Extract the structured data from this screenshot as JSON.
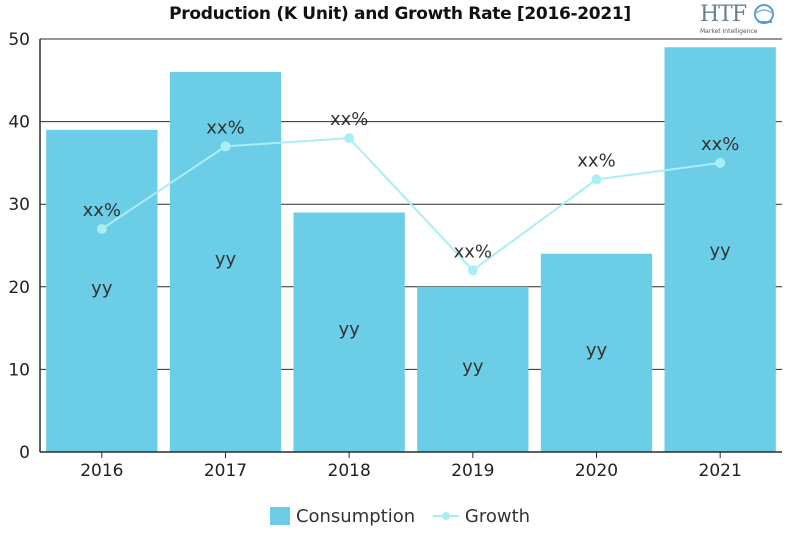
{
  "chart_data": {
    "type": "bar",
    "title": "Production (K Unit) and Growth Rate [2016-2021]",
    "categories": [
      "2016",
      "2017",
      "2018",
      "2019",
      "2020",
      "2021"
    ],
    "ylim": [
      0,
      50
    ],
    "yticks": [
      "0",
      "10",
      "20",
      "30",
      "40",
      "50"
    ],
    "grid": true,
    "legend_position": "bottom",
    "series": [
      {
        "name": "Consumption",
        "type": "bar",
        "color": "#6ccde6",
        "values": [
          39,
          46,
          29,
          20,
          24,
          49
        ],
        "labels": [
          "yy",
          "yy",
          "yy",
          "yy",
          "yy",
          "yy"
        ],
        "label_values": [
          20,
          23.5,
          15,
          10.5,
          12.5,
          24.5
        ]
      },
      {
        "name": "Growth",
        "type": "line",
        "color": "#a9eef5",
        "values": [
          27,
          37,
          38,
          22,
          33,
          35
        ],
        "labels": [
          "xx%",
          "xx%",
          "xx%",
          "xx%",
          "xx%",
          "xx%"
        ]
      }
    ]
  },
  "logo": {
    "text": "HTF",
    "subtext": "Market Intelligence"
  },
  "legend": {
    "consumption_label": "Consumption",
    "growth_label": "Growth"
  }
}
